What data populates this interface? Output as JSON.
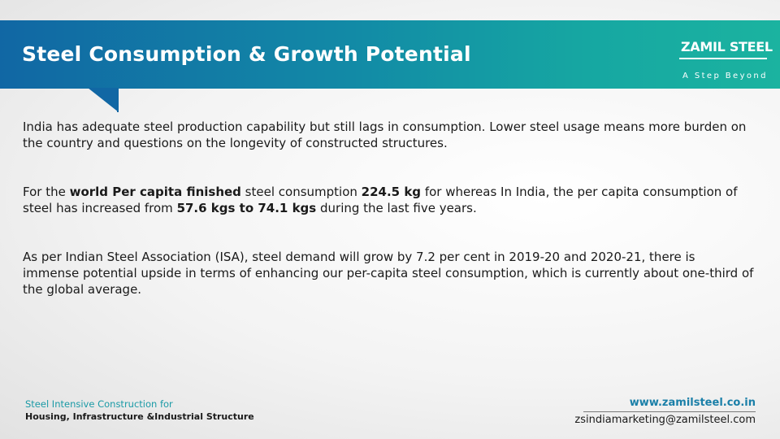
{
  "slide": {
    "title": "Steel Consumption & Growth Potential"
  },
  "logo": {
    "name": "ZAMIL STEEL",
    "tagline": "A Step Beyond"
  },
  "paragraphs": {
    "p1": "India has adequate steel production capability but still lags in consumption. Lower steel usage means more burden on the country and questions on the longevity of constructed structures.",
    "p2": {
      "t1": "For the ",
      "b1": "world Per capita finished",
      "t2": " steel consumption  ",
      "b2": "224.5 kg",
      "t3": " for whereas In India, the per capita consumption of steel has increased from ",
      "b3": "57.6 kgs to 74.1 kgs",
      "t4": " during the last five years."
    },
    "p3": "As per Indian Steel Association (ISA), steel demand will grow by 7.2 per cent in 2019-20 and 2020-21, there is immense potential upside in terms of enhancing our per-capita steel consumption, which is currently about one-third of the global average."
  },
  "footer": {
    "subtitle": "Steel Intensive Construction for",
    "sectors": "Housing, Infrastructure &Industrial Structure",
    "website": "www.zamilsteel.co.in",
    "email": "zsindiamarketing@zamilsteel.com"
  },
  "colors": {
    "banner_left": "#1167a4",
    "banner_right": "#1bb3a0",
    "accent_teal": "#1a9aa6",
    "link_blue": "#1a7fa8"
  }
}
